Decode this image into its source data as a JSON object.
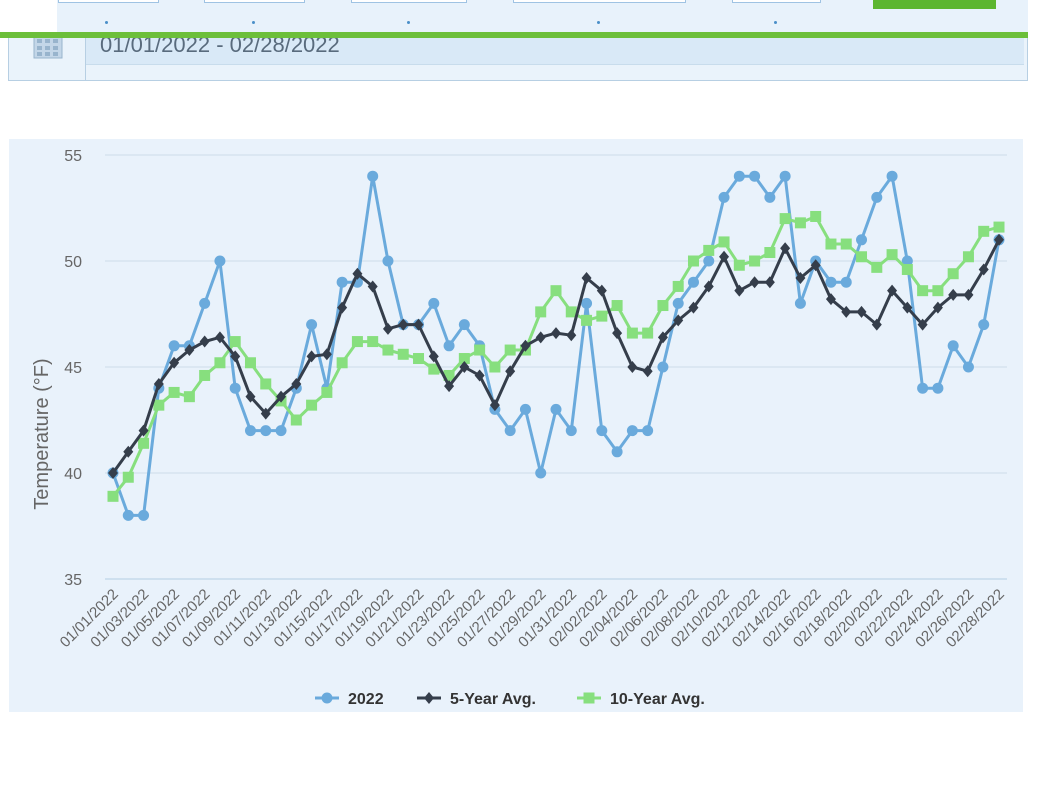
{
  "date_range": {
    "value": "01/01/2022 - 02/28/2022"
  },
  "icons": {
    "calendar": "calendar-icon"
  },
  "colors": {
    "accent_green": "#6cbf3a",
    "series_2022": "#6aaadc",
    "series_5yr": "#353e4b",
    "series_10yr": "#87df7e"
  },
  "chart_data": {
    "type": "line",
    "ylabel": "Temperature (°F)",
    "xlabel": "",
    "ylim": [
      35,
      55
    ],
    "yticks": [
      35,
      40,
      45,
      50,
      55
    ],
    "grid": true,
    "legend_position": "bottom",
    "x": [
      "01/01/2022",
      "01/02/2022",
      "01/03/2022",
      "01/04/2022",
      "01/05/2022",
      "01/06/2022",
      "01/07/2022",
      "01/08/2022",
      "01/09/2022",
      "01/10/2022",
      "01/11/2022",
      "01/12/2022",
      "01/13/2022",
      "01/14/2022",
      "01/15/2022",
      "01/16/2022",
      "01/17/2022",
      "01/18/2022",
      "01/19/2022",
      "01/20/2022",
      "01/21/2022",
      "01/22/2022",
      "01/23/2022",
      "01/24/2022",
      "01/25/2022",
      "01/26/2022",
      "01/27/2022",
      "01/28/2022",
      "01/29/2022",
      "01/30/2022",
      "01/31/2022",
      "02/01/2022",
      "02/02/2022",
      "02/03/2022",
      "02/04/2022",
      "02/05/2022",
      "02/06/2022",
      "02/07/2022",
      "02/08/2022",
      "02/09/2022",
      "02/10/2022",
      "02/11/2022",
      "02/12/2022",
      "02/13/2022",
      "02/14/2022",
      "02/15/2022",
      "02/16/2022",
      "02/17/2022",
      "02/18/2022",
      "02/19/2022",
      "02/20/2022",
      "02/21/2022",
      "02/22/2022",
      "02/23/2022",
      "02/24/2022",
      "02/25/2022",
      "02/26/2022",
      "02/27/2022",
      "02/28/2022"
    ],
    "tick_labels": [
      "01/01/2022",
      "01/03/2022",
      "01/05/2022",
      "01/07/2022",
      "01/09/2022",
      "01/11/2022",
      "01/13/2022",
      "01/15/2022",
      "01/17/2022",
      "01/19/2022",
      "01/21/2022",
      "01/23/2022",
      "01/25/2022",
      "01/27/2022",
      "01/29/2022",
      "01/31/2022",
      "02/02/2022",
      "02/04/2022",
      "02/06/2022",
      "02/08/2022",
      "02/10/2022",
      "02/12/2022",
      "02/14/2022",
      "02/16/2022",
      "02/18/2022",
      "02/20/2022",
      "02/22/2022",
      "02/24/2022",
      "02/26/2022",
      "02/28/2022"
    ],
    "series": [
      {
        "name": "2022",
        "color": "#6aaadc",
        "marker": "circle",
        "values": [
          40,
          38,
          38,
          44,
          46,
          46,
          48,
          50,
          44,
          42,
          42,
          42,
          44,
          47,
          44,
          49,
          49,
          54,
          50,
          47,
          47,
          48,
          46,
          47,
          46,
          43,
          42,
          43,
          40,
          43,
          42,
          48,
          42,
          41,
          42,
          42,
          45,
          48,
          49,
          50,
          53,
          54,
          54,
          53,
          54,
          48,
          50,
          49,
          49,
          51,
          53,
          54,
          50,
          44,
          44,
          46,
          45,
          47,
          51
        ]
      },
      {
        "name": "5-Year Avg.",
        "color": "#353e4b",
        "marker": "diamond",
        "values": [
          40,
          41,
          42,
          44.2,
          45.2,
          45.8,
          46.2,
          46.4,
          45.5,
          43.6,
          42.8,
          43.6,
          44.2,
          45.5,
          45.6,
          47.8,
          49.4,
          48.8,
          46.8,
          47,
          47,
          45.5,
          44.1,
          45,
          44.6,
          43.2,
          44.8,
          46,
          46.4,
          46.6,
          46.5,
          49.2,
          48.6,
          46.6,
          45,
          44.8,
          46.4,
          47.2,
          47.8,
          48.8,
          50.2,
          48.6,
          49,
          49,
          50.6,
          49.2,
          49.8,
          48.2,
          47.6,
          47.6,
          47,
          48.6,
          47.8,
          47,
          47.8,
          48.4,
          48.4,
          49.6,
          51
        ]
      },
      {
        "name": "10-Year Avg.",
        "color": "#87df7e",
        "marker": "square",
        "values": [
          38.9,
          39.8,
          41.4,
          43.2,
          43.8,
          43.6,
          44.6,
          45.2,
          46.2,
          45.2,
          44.2,
          43.4,
          42.5,
          43.2,
          43.8,
          45.2,
          46.2,
          46.2,
          45.8,
          45.6,
          45.4,
          44.9,
          44.6,
          45.4,
          45.8,
          45,
          45.8,
          45.8,
          47.6,
          48.6,
          47.6,
          47.2,
          47.4,
          47.9,
          46.6,
          46.6,
          47.9,
          48.8,
          50,
          50.5,
          50.9,
          49.8,
          50,
          50.4,
          52,
          51.8,
          52.1,
          50.8,
          50.8,
          50.2,
          49.7,
          50.3,
          49.6,
          48.6,
          48.6,
          49.4,
          50.2,
          51.4,
          51.6
        ]
      }
    ]
  }
}
